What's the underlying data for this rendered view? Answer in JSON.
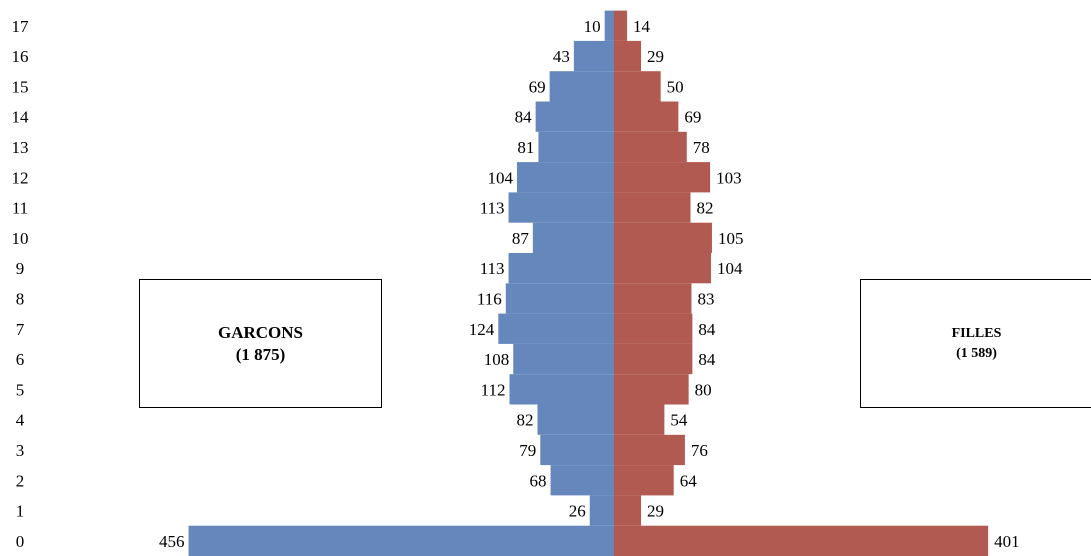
{
  "chart_data": {
    "type": "bar",
    "orientation": "horizontal",
    "subtype": "population pyramid",
    "categories": [
      "0",
      "1",
      "2",
      "3",
      "4",
      "5",
      "6",
      "7",
      "8",
      "9",
      "10",
      "11",
      "12",
      "13",
      "14",
      "15",
      "16",
      "17"
    ],
    "series": [
      {
        "name": "GARCONS",
        "side": "left",
        "color": "#6587BC",
        "values": [
          456,
          26,
          68,
          79,
          82,
          112,
          108,
          124,
          116,
          113,
          87,
          113,
          104,
          81,
          84,
          69,
          43,
          10
        ]
      },
      {
        "name": "FILLES",
        "side": "right",
        "color": "#B15A51",
        "values": [
          401,
          29,
          64,
          76,
          54,
          80,
          84,
          84,
          83,
          104,
          105,
          82,
          103,
          78,
          69,
          50,
          29,
          14
        ]
      }
    ],
    "grid": false,
    "legend": "none"
  },
  "labels": {
    "boys_title": "GARCONS",
    "boys_total": "(1 875)",
    "girls_title": "FILLES",
    "girls_total": "(1 589)"
  }
}
